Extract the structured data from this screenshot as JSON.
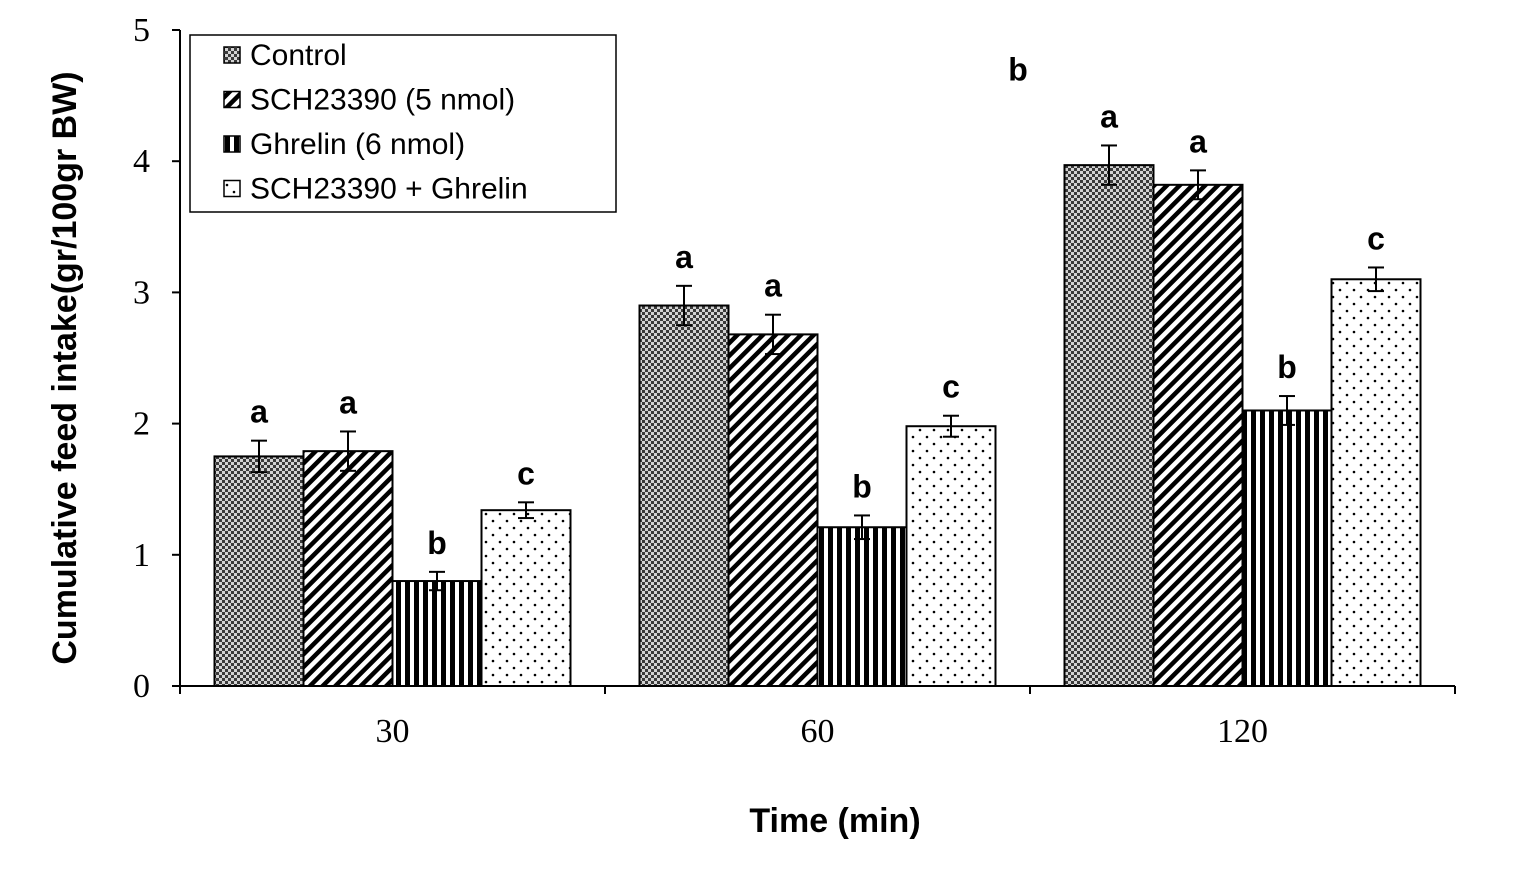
{
  "chart_data": {
    "type": "bar",
    "xlabel": "Time (min)",
    "ylabel": "Cumulative feed intake(gr/100gr BW)",
    "ylim": [
      0,
      5
    ],
    "yticks": [
      0,
      1,
      2,
      3,
      4,
      5
    ],
    "categories": [
      "30",
      "60",
      "120"
    ],
    "grid": false,
    "legend_position": "top-left",
    "series": [
      {
        "name": "Control",
        "pattern": "checker",
        "values": [
          1.75,
          2.9,
          3.97
        ],
        "errors": [
          0.12,
          0.15,
          0.15
        ],
        "letters": [
          "a",
          "a",
          "a"
        ]
      },
      {
        "name": "SCH23390 (5 nmol)",
        "pattern": "diagonal",
        "values": [
          1.79,
          2.68,
          3.82
        ],
        "errors": [
          0.15,
          0.15,
          0.11
        ],
        "letters": [
          "a",
          "a",
          "a"
        ]
      },
      {
        "name": "Ghrelin (6 nmol)",
        "pattern": "vertical",
        "values": [
          0.8,
          1.21,
          2.1
        ],
        "errors": [
          0.07,
          0.09,
          0.11
        ],
        "letters": [
          "b",
          "b",
          "b"
        ]
      },
      {
        "name": "SCH23390 + Ghrelin",
        "pattern": "dots",
        "values": [
          1.34,
          1.98,
          3.1
        ],
        "errors": [
          0.06,
          0.08,
          0.09
        ],
        "letters": [
          "c",
          "c",
          "c"
        ]
      }
    ],
    "annotations": [
      {
        "text": "b",
        "x": "between 60 and 120",
        "y": 4.7
      }
    ]
  }
}
